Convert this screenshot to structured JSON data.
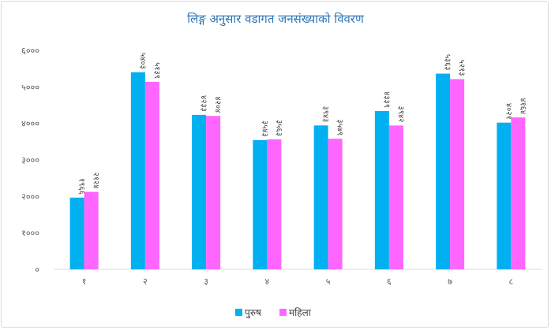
{
  "chart_data": {
    "type": "bar",
    "title": "लिङ्ग अनुसार वडागत जनसंख्याको विवरण",
    "xlabel": "",
    "ylabel": "",
    "categories": [
      "१",
      "२",
      "३",
      "४",
      "५",
      "६",
      "७",
      "८"
    ],
    "ylim": [
      0,
      6000
    ],
    "yticks": [
      0,
      1000,
      2000,
      3000,
      4000,
      5000,
      6000
    ],
    "ytick_labels": [
      "०",
      "१०००",
      "२०००",
      "३०००",
      "४०००",
      "५०००",
      "६०००"
    ],
    "legend_position": "bottom",
    "series": [
      {
        "name": "पुरुष",
        "color": "#00B0F0",
        "values": [
          1966,
          5403,
          4233,
          3543,
          3943,
          4339,
          5363,
          4021
        ],
        "labels": [
          "१९६६",
          "५४०३",
          "४२३३",
          "३५४३",
          "३९४३",
          "४३३९",
          "५३६३",
          "४०२१"
        ]
      },
      {
        "name": "महिला",
        "color": "#FF66FF",
        "values": [
          2124,
          5139,
          4204,
          3563,
          3579,
          3942,
          5213,
          4164
        ],
        "labels": [
          "२१२४",
          "५१३९",
          "४२०४",
          "३५६३",
          "३५७९",
          "३९४२",
          "५२१३",
          "४१६४"
        ]
      }
    ]
  }
}
